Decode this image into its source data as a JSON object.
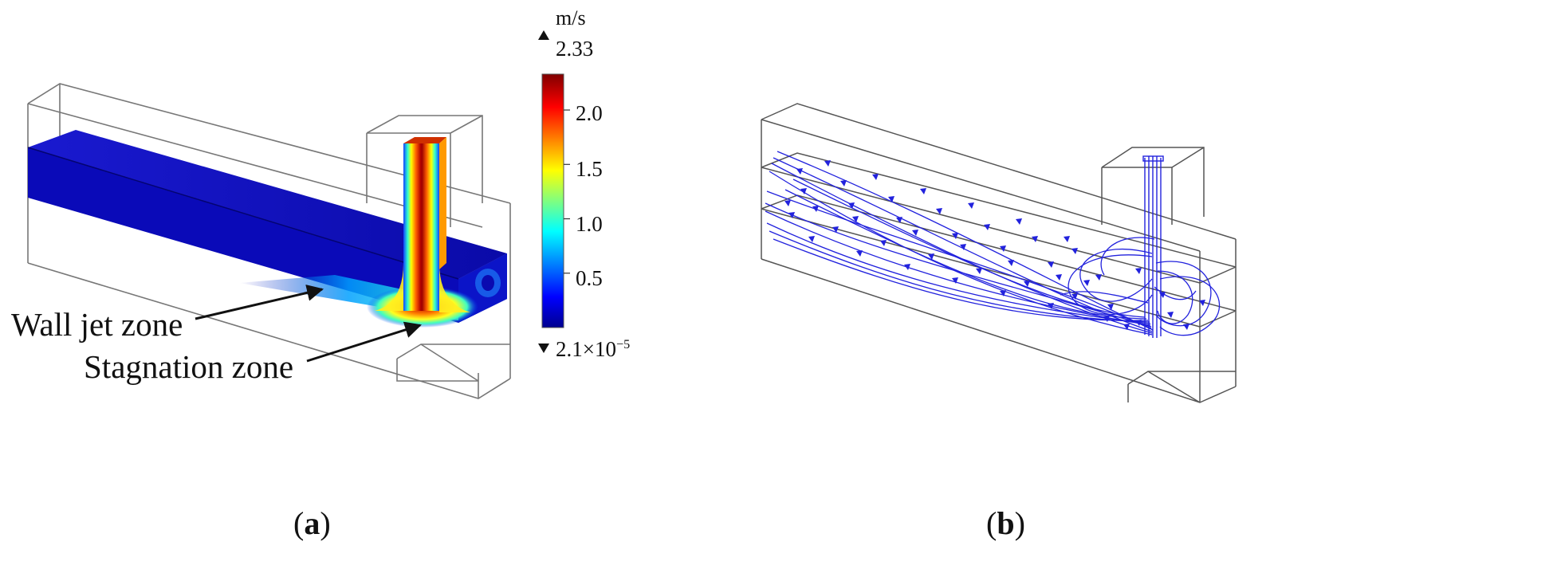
{
  "panel_a": {
    "label_open": "(",
    "label_letter": "a",
    "label_close": ")",
    "annotations": [
      "Wall jet zone",
      "Stagnation zone"
    ],
    "colorbar": {
      "unit": "m/s",
      "max_label": "2.33",
      "min_label_base": "2.1×10",
      "min_label_exp": "−5",
      "ticks": [
        "2.0",
        "1.5",
        "1.0",
        "0.5"
      ],
      "max_value": 2.33,
      "min_value": 2.1e-05,
      "tick_values": [
        2.0,
        1.5,
        1.0,
        0.5
      ],
      "colormap": [
        "#00008f",
        "#0000ff",
        "#00ffff",
        "#ffff00",
        "#ff0000",
        "#800000"
      ]
    }
  },
  "panel_b": {
    "label_open": "(",
    "label_letter": "b",
    "label_close": ")",
    "streamline_color": "#2222dd"
  }
}
